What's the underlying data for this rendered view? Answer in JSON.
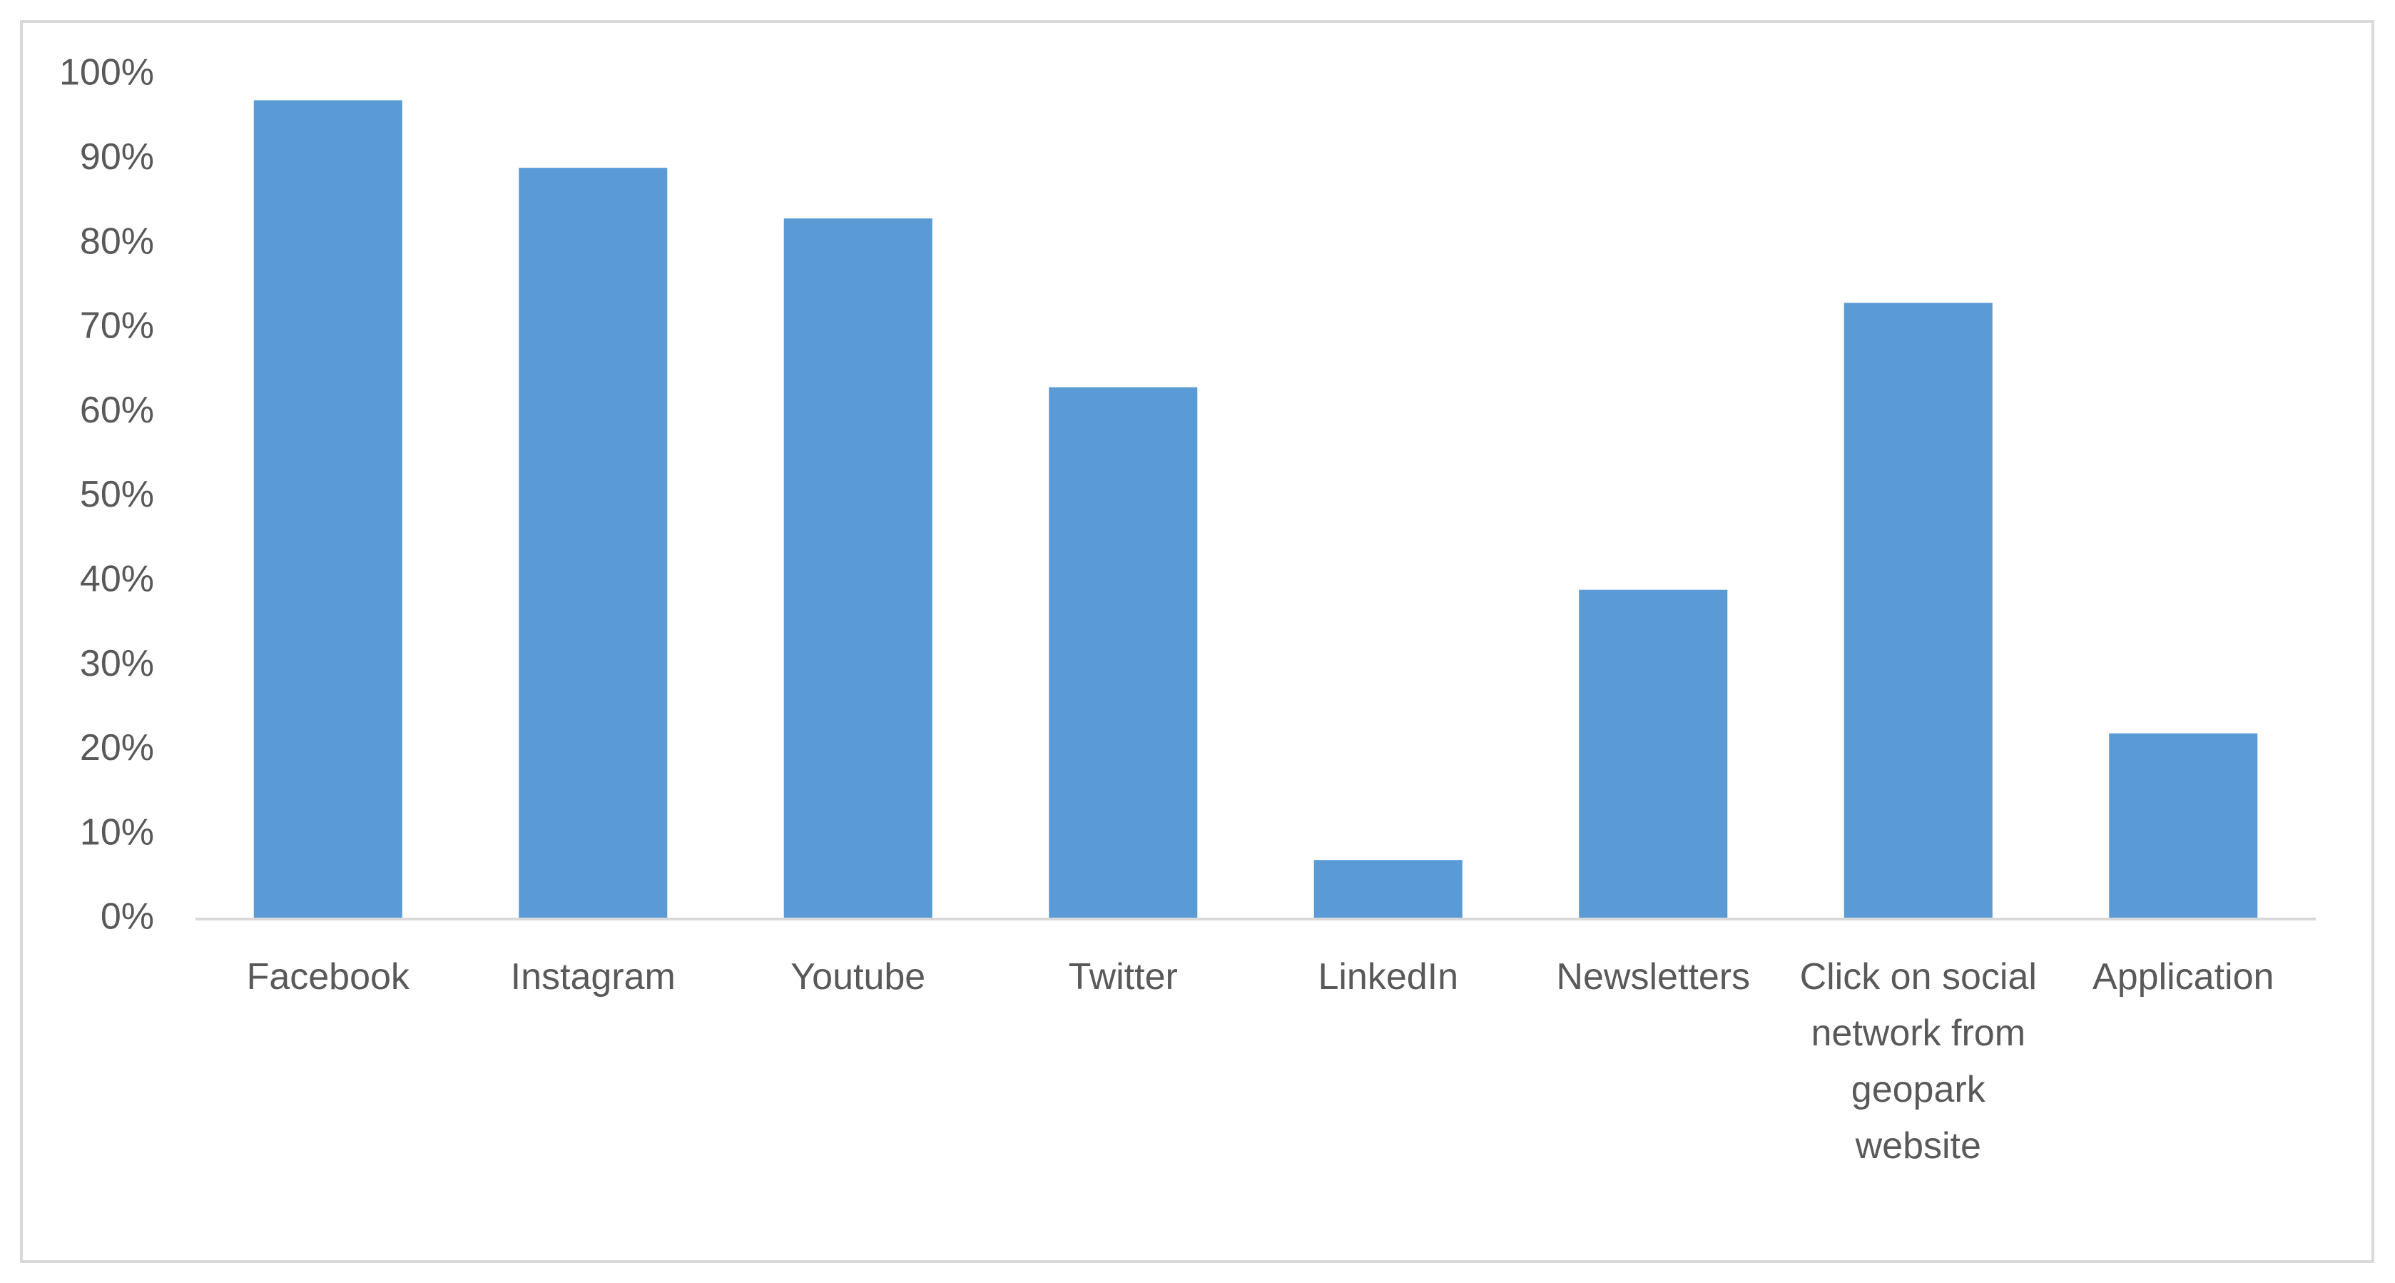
{
  "chart_data": {
    "type": "bar",
    "categories": [
      "Facebook",
      "Instagram",
      "Youtube",
      "Twitter",
      "LinkedIn",
      "Newsletters",
      "Click on social network from geopark website",
      "Application"
    ],
    "values": [
      97,
      89,
      83,
      63,
      7,
      39,
      73,
      22
    ],
    "color": "#5b9bd5",
    "ylim": [
      0,
      100
    ],
    "yticks": [
      {
        "value": 0,
        "label": "0%"
      },
      {
        "value": 10,
        "label": "10%"
      },
      {
        "value": 20,
        "label": "20%"
      },
      {
        "value": 30,
        "label": "30%"
      },
      {
        "value": 40,
        "label": "40%"
      },
      {
        "value": 50,
        "label": "50%"
      },
      {
        "value": 60,
        "label": "60%"
      },
      {
        "value": 70,
        "label": "70%"
      },
      {
        "value": 80,
        "label": "80%"
      },
      {
        "value": 90,
        "label": "90%"
      },
      {
        "value": 100,
        "label": "100%"
      }
    ],
    "grid": false
  }
}
